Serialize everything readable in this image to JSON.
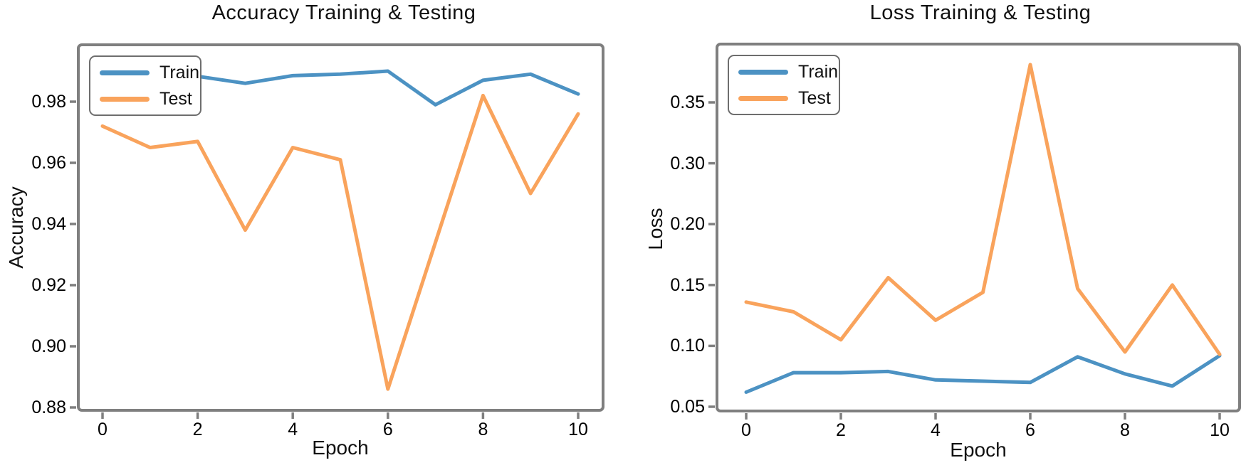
{
  "figure": {
    "background": "#ffffff",
    "axis_color": "#7f7f7f",
    "text_color": "#111111"
  },
  "chart_data": [
    {
      "type": "line",
      "title": "Accuracy Training & Testing",
      "xlabel": "Epoch",
      "ylabel": "Accuracy",
      "x": [
        0,
        1,
        2,
        3,
        4,
        5,
        6,
        7,
        8,
        9,
        10
      ],
      "xticks": [
        0,
        2,
        4,
        6,
        8,
        10
      ],
      "xtick_labels": [
        "0",
        "2",
        "4",
        "6",
        "8",
        "10"
      ],
      "ytick_values": [
        0.88,
        0.9,
        0.92,
        0.94,
        0.96,
        0.98
      ],
      "ytick_labels": [
        "0.88",
        "0.90",
        "0.92",
        "0.94",
        "0.96",
        "0.98"
      ],
      "xlim": [
        -0.5,
        10.5
      ],
      "ylim": [
        0.879,
        0.9985
      ],
      "grid": false,
      "legend_position": "upper left",
      "series": [
        {
          "name": "Train",
          "color": "#4C92C3",
          "values": [
            0.987,
            0.988,
            0.9883,
            0.986,
            0.9885,
            0.989,
            0.99,
            0.979,
            0.987,
            0.989,
            0.9825
          ]
        },
        {
          "name": "Test",
          "color": "#F9A35C",
          "values": [
            0.972,
            0.965,
            0.967,
            0.938,
            0.965,
            0.961,
            0.886,
            0.934,
            0.982,
            0.95,
            0.976
          ]
        }
      ]
    },
    {
      "type": "line",
      "title": "Loss Training & Testing",
      "xlabel": "Epoch",
      "ylabel": "Loss",
      "x": [
        0,
        1,
        2,
        3,
        4,
        5,
        6,
        7,
        8,
        9,
        10
      ],
      "xticks": [
        0,
        2,
        4,
        6,
        8,
        10
      ],
      "xtick_labels": [
        "0",
        "2",
        "4",
        "6",
        "8",
        "10"
      ],
      "ytick_values": [
        0.05,
        0.1,
        0.15,
        0.2,
        0.3,
        0.35
      ],
      "ytick_labels": [
        "0.05",
        "0.10",
        "0.15",
        "0.20",
        "0.30",
        "0.35"
      ],
      "xlim": [
        -0.6,
        10.4
      ],
      "ylim": [
        0.046,
        0.397
      ],
      "grid": false,
      "legend_position": "upper left",
      "axis_note": "y tick labels are evenly spaced as shown (0.25 label not displayed)",
      "series": [
        {
          "name": "Train",
          "color": "#4C92C3",
          "values": [
            0.062,
            0.078,
            0.078,
            0.079,
            0.072,
            0.071,
            0.07,
            0.091,
            0.077,
            0.067,
            0.092
          ]
        },
        {
          "name": "Test",
          "color": "#F9A35C",
          "values": [
            0.136,
            0.128,
            0.105,
            0.156,
            0.121,
            0.144,
            0.381,
            0.147,
            0.095,
            0.15,
            0.093
          ]
        }
      ]
    }
  ]
}
